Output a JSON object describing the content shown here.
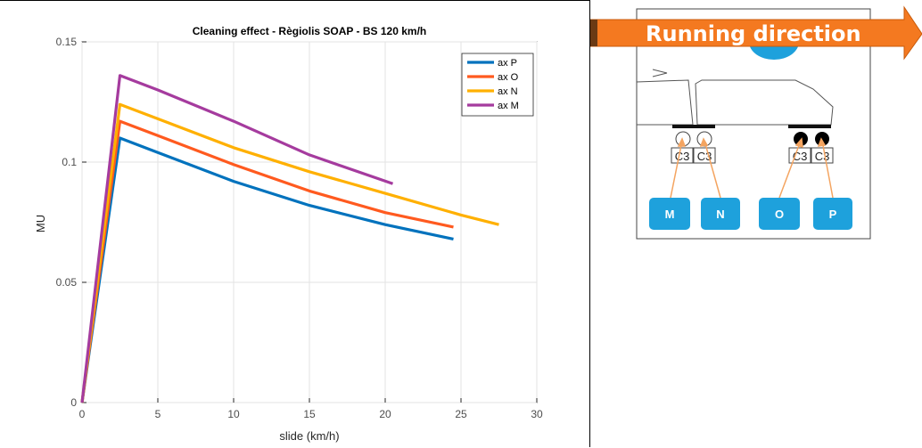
{
  "chart_data": {
    "type": "line",
    "title": "Cleaning effect - Règiolis SOAP - BS 120 km/h",
    "xlabel": "slide (km/h)",
    "ylabel": "MU",
    "xlim": [
      0,
      30
    ],
    "ylim": [
      0,
      0.15
    ],
    "xticks": [
      "0",
      "5",
      "10",
      "15",
      "20",
      "25",
      "30"
    ],
    "yticks": [
      "0",
      "0.05",
      "0.1",
      "0.15"
    ],
    "grid": true,
    "legend_position": "top-right",
    "series": [
      {
        "name": "ax P",
        "color": "#0072bd",
        "x": [
          0,
          2.5,
          5,
          10,
          15,
          20,
          24.5
        ],
        "y": [
          0,
          0.11,
          0.104,
          0.092,
          0.082,
          0.074,
          0.068
        ]
      },
      {
        "name": "ax O",
        "color": "#ff5a1f",
        "x": [
          0,
          2.5,
          5,
          10,
          15,
          20,
          24.5
        ],
        "y": [
          0,
          0.117,
          0.111,
          0.099,
          0.088,
          0.079,
          0.073
        ]
      },
      {
        "name": "ax N",
        "color": "#ffb000",
        "x": [
          0,
          2.5,
          5,
          10,
          15,
          20,
          25,
          27.5
        ],
        "y": [
          0,
          0.124,
          0.118,
          0.106,
          0.096,
          0.087,
          0.078,
          0.074
        ]
      },
      {
        "name": "ax M",
        "color": "#a53b9e",
        "x": [
          0,
          2.5,
          5,
          10,
          15,
          20.5
        ],
        "y": [
          0,
          0.136,
          0.13,
          0.117,
          0.103,
          0.091
        ]
      }
    ]
  },
  "diagram": {
    "banner_text": "Running direction",
    "box_labels": [
      "C3",
      "C3",
      "C3",
      "C3"
    ],
    "axle_buttons": [
      "M",
      "N",
      "O",
      "P"
    ],
    "colors": {
      "banner": "#f47920",
      "button": "#1ea1dc",
      "arrow": "#f4a460"
    }
  }
}
